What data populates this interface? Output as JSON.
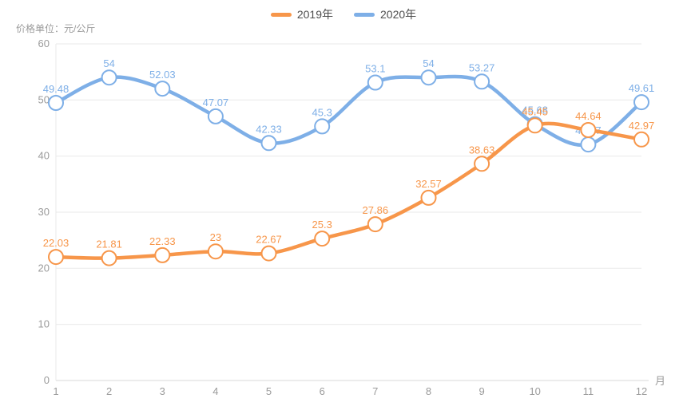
{
  "legend": {
    "items": [
      {
        "label": "2019年",
        "color": "#f7964a"
      },
      {
        "label": "2020年",
        "color": "#7eafe7"
      }
    ]
  },
  "chart_data": {
    "type": "line",
    "title": "",
    "unit_label": "价格单位：元/公斤",
    "x_axis_name": "月",
    "categories": [
      "1",
      "2",
      "3",
      "4",
      "5",
      "6",
      "7",
      "8",
      "9",
      "10",
      "11",
      "12"
    ],
    "y_ticks": [
      0,
      10,
      20,
      30,
      40,
      50,
      60
    ],
    "ylim": [
      0,
      60
    ],
    "grid": true,
    "smooth": true,
    "legend_position": "top-center",
    "series": [
      {
        "name": "2019年",
        "color": "#f7964a",
        "values": [
          22.03,
          21.81,
          22.33,
          23,
          22.67,
          25.3,
          27.86,
          32.57,
          38.63,
          45.45,
          44.64,
          42.97
        ],
        "labels": [
          "22.03",
          "21.81",
          "22.33",
          "23",
          "22.67",
          "25.3",
          "27.86",
          "32.57",
          "38.63",
          "45.45",
          "44.64",
          "42.97"
        ]
      },
      {
        "name": "2020年",
        "color": "#7eafe7",
        "values": [
          49.48,
          54,
          52.03,
          47.07,
          42.33,
          45.3,
          53.1,
          54,
          53.27,
          45.68,
          42.07,
          49.61
        ],
        "labels": [
          "49.48",
          "54",
          "52.03",
          "47.07",
          "42.33",
          "45.3",
          "53.1",
          "54",
          "53.27",
          "45.68",
          "42.07",
          "49.61"
        ]
      }
    ],
    "draw_order": [
      "2020年",
      "2019年"
    ],
    "colors": {
      "grid_line": "#e9e9e9",
      "axis_line": "#d9d9d9",
      "tick_text": "#9b9b9b",
      "legend_text": "#4d4d4d",
      "marker_fill": "#ffffff"
    }
  }
}
